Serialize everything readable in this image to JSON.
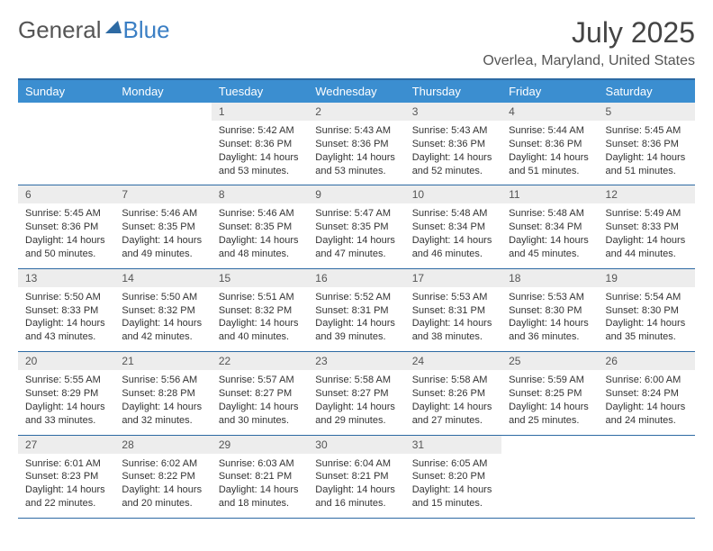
{
  "logo": {
    "part1": "General",
    "part2": "Blue"
  },
  "title": "July 2025",
  "location": "Overlea, Maryland, United States",
  "colors": {
    "header_bg": "#3b8ed0",
    "header_border": "#2d6aa3",
    "daynum_bg": "#ededed",
    "text": "#333333"
  },
  "days_of_week": [
    "Sunday",
    "Monday",
    "Tuesday",
    "Wednesday",
    "Thursday",
    "Friday",
    "Saturday"
  ],
  "weeks": [
    [
      {
        "empty": true
      },
      {
        "empty": true
      },
      {
        "num": "1",
        "sunrise": "5:42 AM",
        "sunset": "8:36 PM",
        "daylight": "14 hours and 53 minutes."
      },
      {
        "num": "2",
        "sunrise": "5:43 AM",
        "sunset": "8:36 PM",
        "daylight": "14 hours and 53 minutes."
      },
      {
        "num": "3",
        "sunrise": "5:43 AM",
        "sunset": "8:36 PM",
        "daylight": "14 hours and 52 minutes."
      },
      {
        "num": "4",
        "sunrise": "5:44 AM",
        "sunset": "8:36 PM",
        "daylight": "14 hours and 51 minutes."
      },
      {
        "num": "5",
        "sunrise": "5:45 AM",
        "sunset": "8:36 PM",
        "daylight": "14 hours and 51 minutes."
      }
    ],
    [
      {
        "num": "6",
        "sunrise": "5:45 AM",
        "sunset": "8:36 PM",
        "daylight": "14 hours and 50 minutes."
      },
      {
        "num": "7",
        "sunrise": "5:46 AM",
        "sunset": "8:35 PM",
        "daylight": "14 hours and 49 minutes."
      },
      {
        "num": "8",
        "sunrise": "5:46 AM",
        "sunset": "8:35 PM",
        "daylight": "14 hours and 48 minutes."
      },
      {
        "num": "9",
        "sunrise": "5:47 AM",
        "sunset": "8:35 PM",
        "daylight": "14 hours and 47 minutes."
      },
      {
        "num": "10",
        "sunrise": "5:48 AM",
        "sunset": "8:34 PM",
        "daylight": "14 hours and 46 minutes."
      },
      {
        "num": "11",
        "sunrise": "5:48 AM",
        "sunset": "8:34 PM",
        "daylight": "14 hours and 45 minutes."
      },
      {
        "num": "12",
        "sunrise": "5:49 AM",
        "sunset": "8:33 PM",
        "daylight": "14 hours and 44 minutes."
      }
    ],
    [
      {
        "num": "13",
        "sunrise": "5:50 AM",
        "sunset": "8:33 PM",
        "daylight": "14 hours and 43 minutes."
      },
      {
        "num": "14",
        "sunrise": "5:50 AM",
        "sunset": "8:32 PM",
        "daylight": "14 hours and 42 minutes."
      },
      {
        "num": "15",
        "sunrise": "5:51 AM",
        "sunset": "8:32 PM",
        "daylight": "14 hours and 40 minutes."
      },
      {
        "num": "16",
        "sunrise": "5:52 AM",
        "sunset": "8:31 PM",
        "daylight": "14 hours and 39 minutes."
      },
      {
        "num": "17",
        "sunrise": "5:53 AM",
        "sunset": "8:31 PM",
        "daylight": "14 hours and 38 minutes."
      },
      {
        "num": "18",
        "sunrise": "5:53 AM",
        "sunset": "8:30 PM",
        "daylight": "14 hours and 36 minutes."
      },
      {
        "num": "19",
        "sunrise": "5:54 AM",
        "sunset": "8:30 PM",
        "daylight": "14 hours and 35 minutes."
      }
    ],
    [
      {
        "num": "20",
        "sunrise": "5:55 AM",
        "sunset": "8:29 PM",
        "daylight": "14 hours and 33 minutes."
      },
      {
        "num": "21",
        "sunrise": "5:56 AM",
        "sunset": "8:28 PM",
        "daylight": "14 hours and 32 minutes."
      },
      {
        "num": "22",
        "sunrise": "5:57 AM",
        "sunset": "8:27 PM",
        "daylight": "14 hours and 30 minutes."
      },
      {
        "num": "23",
        "sunrise": "5:58 AM",
        "sunset": "8:27 PM",
        "daylight": "14 hours and 29 minutes."
      },
      {
        "num": "24",
        "sunrise": "5:58 AM",
        "sunset": "8:26 PM",
        "daylight": "14 hours and 27 minutes."
      },
      {
        "num": "25",
        "sunrise": "5:59 AM",
        "sunset": "8:25 PM",
        "daylight": "14 hours and 25 minutes."
      },
      {
        "num": "26",
        "sunrise": "6:00 AM",
        "sunset": "8:24 PM",
        "daylight": "14 hours and 24 minutes."
      }
    ],
    [
      {
        "num": "27",
        "sunrise": "6:01 AM",
        "sunset": "8:23 PM",
        "daylight": "14 hours and 22 minutes."
      },
      {
        "num": "28",
        "sunrise": "6:02 AM",
        "sunset": "8:22 PM",
        "daylight": "14 hours and 20 minutes."
      },
      {
        "num": "29",
        "sunrise": "6:03 AM",
        "sunset": "8:21 PM",
        "daylight": "14 hours and 18 minutes."
      },
      {
        "num": "30",
        "sunrise": "6:04 AM",
        "sunset": "8:21 PM",
        "daylight": "14 hours and 16 minutes."
      },
      {
        "num": "31",
        "sunrise": "6:05 AM",
        "sunset": "8:20 PM",
        "daylight": "14 hours and 15 minutes."
      },
      {
        "empty": true
      },
      {
        "empty": true
      }
    ]
  ],
  "labels": {
    "sunrise_prefix": "Sunrise: ",
    "sunset_prefix": "Sunset: ",
    "daylight_prefix": "Daylight: "
  }
}
